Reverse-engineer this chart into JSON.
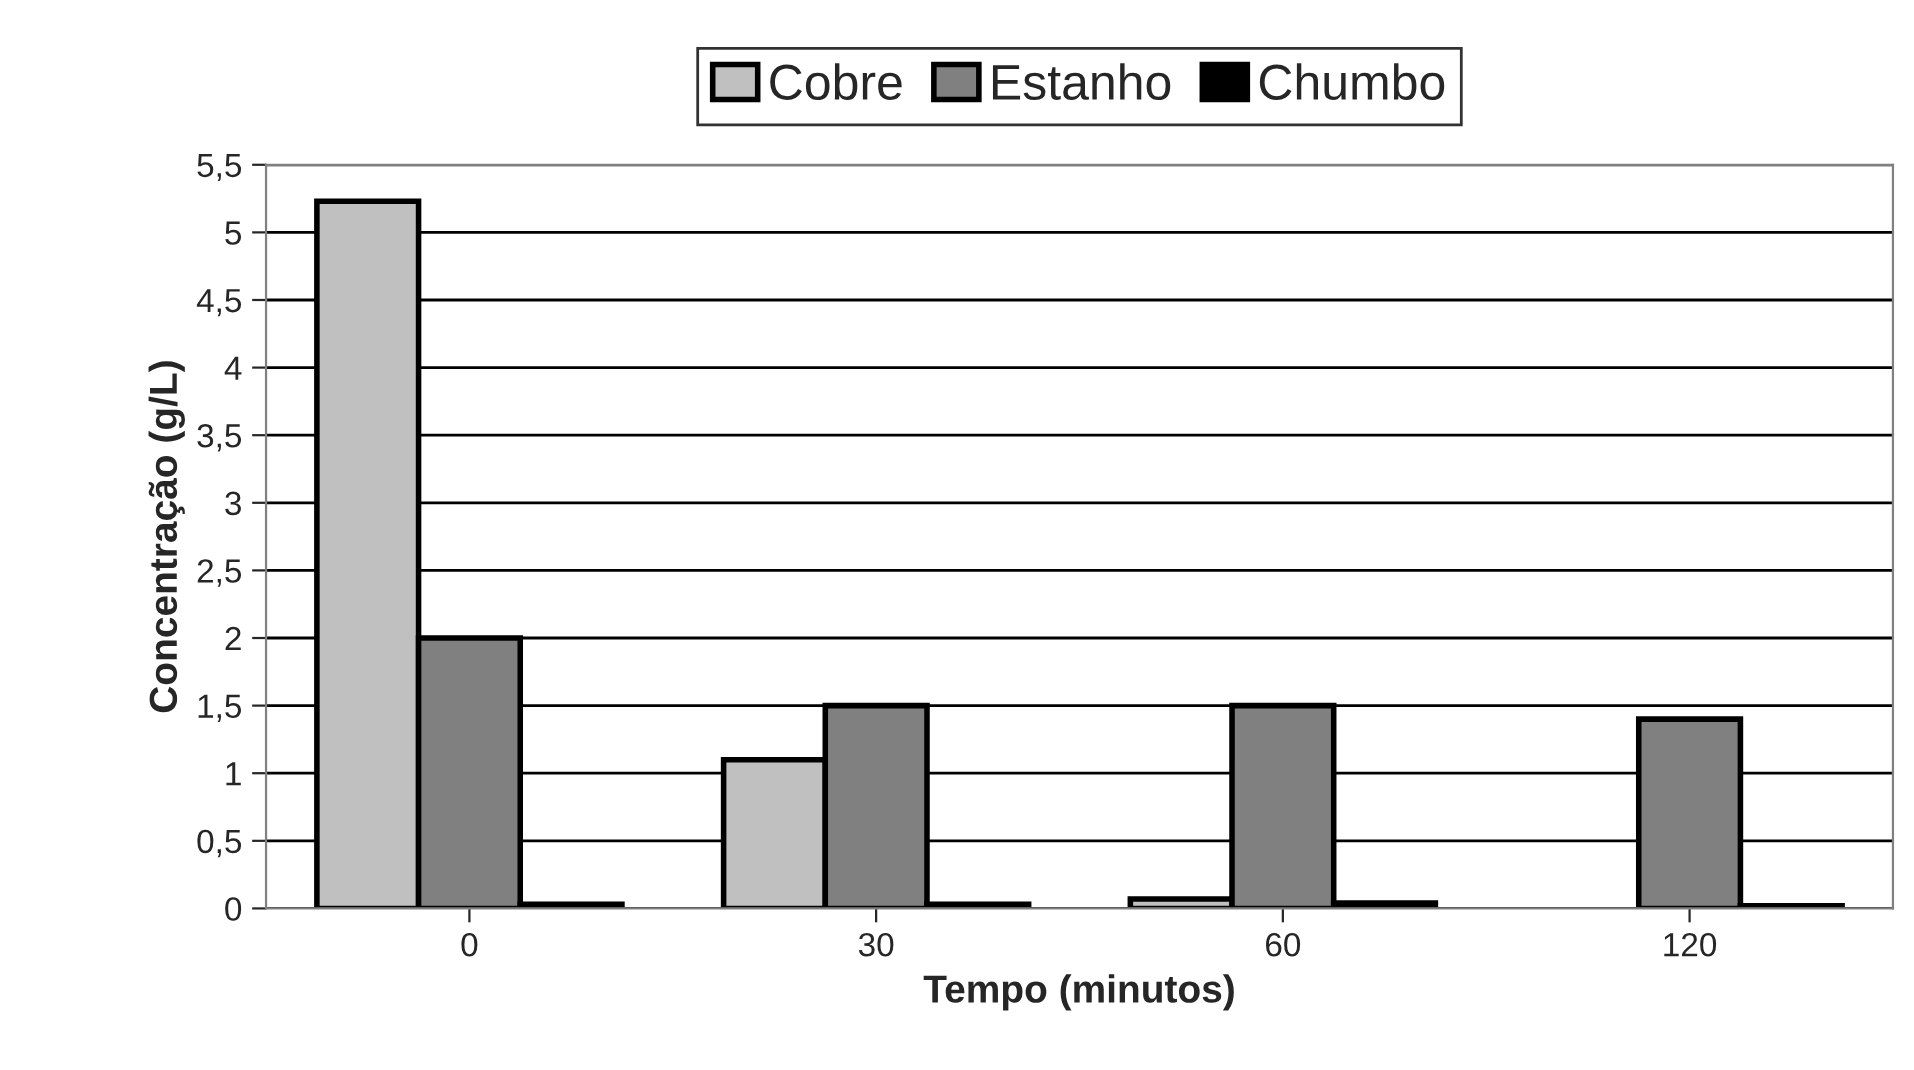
{
  "chart_data": {
    "type": "bar",
    "xlabel": "Tempo (minutos)",
    "ylabel": "Concentração (g/L)",
    "categories": [
      "0",
      "30",
      "60",
      "120"
    ],
    "series": [
      {
        "name": "Cobre",
        "color": "#c0c0c0",
        "values": [
          5.23,
          1.1,
          0.07,
          null
        ]
      },
      {
        "name": "Estanho",
        "color": "#808080",
        "values": [
          2.0,
          1.5,
          1.5,
          1.4
        ]
      },
      {
        "name": "Chumbo",
        "color": "#000000",
        "values": [
          0.03,
          0.03,
          0.04,
          0.02
        ]
      }
    ],
    "ylim": [
      0,
      5.5
    ],
    "yticks": [
      {
        "value": 0,
        "label": "0"
      },
      {
        "value": 0.5,
        "label": "0,5"
      },
      {
        "value": 1,
        "label": "1"
      },
      {
        "value": 1.5,
        "label": "1,5"
      },
      {
        "value": 2,
        "label": "2"
      },
      {
        "value": 2.5,
        "label": "2,5"
      },
      {
        "value": 3,
        "label": "3"
      },
      {
        "value": 3.5,
        "label": "3,5"
      },
      {
        "value": 4,
        "label": "4"
      },
      {
        "value": 4.5,
        "label": "4,5"
      },
      {
        "value": 5,
        "label": "5"
      },
      {
        "value": 5.5,
        "label": "5,5"
      }
    ],
    "grid": "y",
    "legend": "top"
  }
}
